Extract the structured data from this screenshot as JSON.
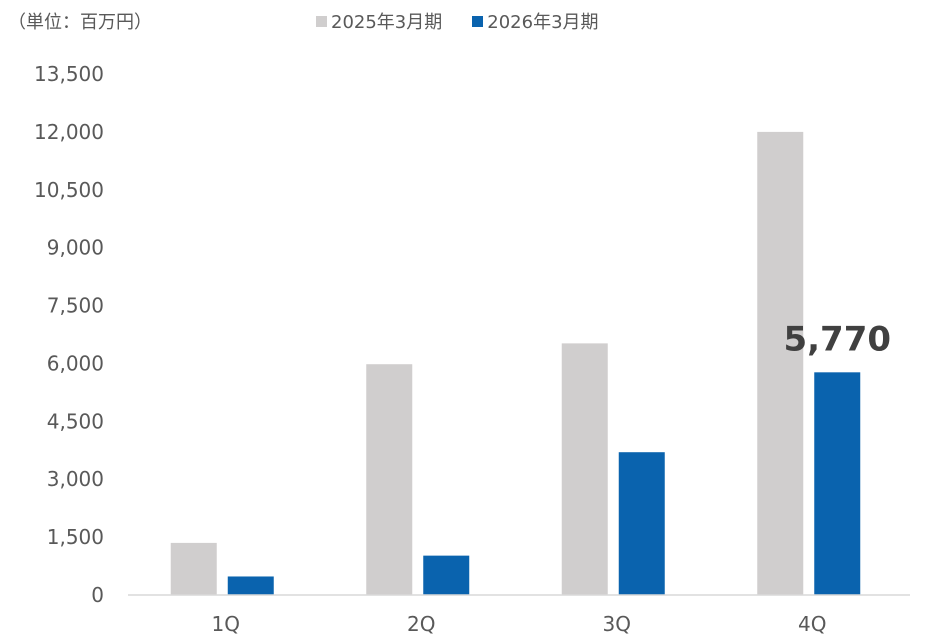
{
  "chart_data": {
    "type": "bar",
    "unit_label": "（単位：百万円）",
    "categories": [
      "1Q",
      "2Q",
      "3Q",
      "4Q"
    ],
    "series": [
      {
        "name": "2025年3月期",
        "color": "#d0cece",
        "values": [
          1350,
          5980,
          6520,
          12000
        ]
      },
      {
        "name": "2026年3月期",
        "color": "#0a63ae",
        "values": [
          480,
          1020,
          3700,
          5770
        ]
      }
    ],
    "yticks": [
      "0",
      "1,500",
      "3,000",
      "4,500",
      "6,000",
      "7,500",
      "9,000",
      "10,500",
      "12,000",
      "13,500"
    ],
    "ylim": [
      0,
      13500
    ],
    "grid": false,
    "legend_position": "top",
    "annotation": {
      "text": "5,770",
      "category": "4Q",
      "series": "2026年3月期"
    }
  }
}
